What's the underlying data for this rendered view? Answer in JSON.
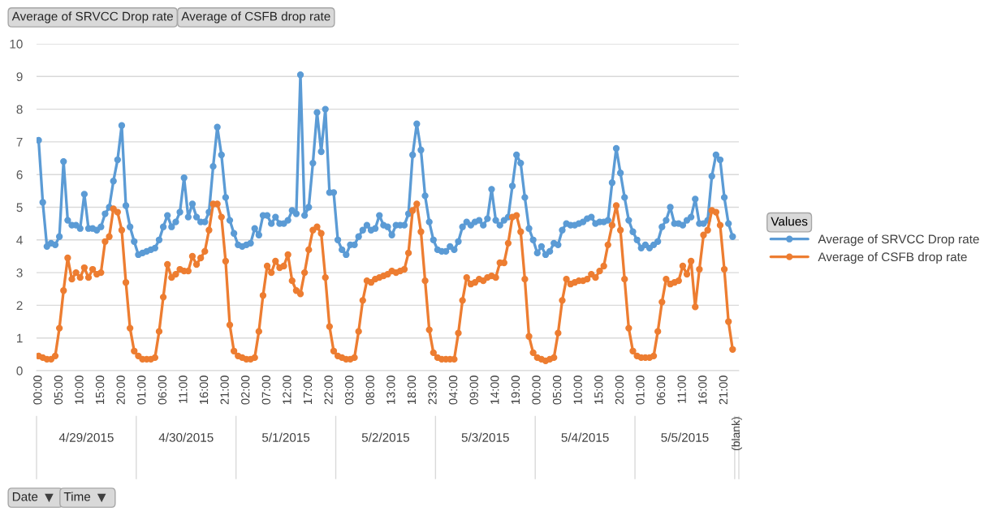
{
  "chart_data": {
    "type": "line",
    "categories": [
      "00:00",
      null,
      null,
      null,
      null,
      "05:00",
      null,
      null,
      null,
      null,
      "10:00",
      null,
      null,
      null,
      null,
      "15:00",
      null,
      null,
      null,
      null,
      "20:00",
      null,
      null,
      null,
      null,
      "01:00",
      null,
      null,
      null,
      null,
      "06:00",
      null,
      null,
      null,
      null,
      "11:00",
      null,
      null,
      null,
      null,
      "16:00",
      null,
      null,
      null,
      null,
      "21:00",
      null,
      null,
      null,
      null,
      "02:00",
      null,
      null,
      null,
      null,
      "07:00",
      null,
      null,
      null,
      null,
      "12:00",
      null,
      null,
      null,
      null,
      "17:00",
      null,
      null,
      null,
      null,
      "22:00",
      null,
      null,
      null,
      null,
      "03:00",
      null,
      null,
      null,
      null,
      "08:00",
      null,
      null,
      null,
      null,
      "13:00",
      null,
      null,
      null,
      null,
      "18:00",
      null,
      null,
      null,
      null,
      "23:00",
      null,
      null,
      null,
      null,
      "04:00",
      null,
      null,
      null,
      null,
      "09:00",
      null,
      null,
      null,
      null,
      "14:00",
      null,
      null,
      null,
      null,
      "19:00",
      null,
      null,
      null,
      null,
      "00:00",
      null,
      null,
      null,
      null,
      "05:00",
      null,
      null,
      null,
      null,
      "10:00",
      null,
      null,
      null,
      null,
      "15:00",
      null,
      null,
      null,
      null,
      "20:00",
      null,
      null,
      null,
      null,
      "01:00",
      null,
      null,
      null,
      null,
      "06:00",
      null,
      null,
      null,
      null,
      "11:00",
      null,
      null,
      null,
      null,
      "16:00",
      null,
      null,
      null,
      null,
      "21:00",
      null,
      null,
      null
    ],
    "series": [
      {
        "name": "Average of SRVCC Drop rate",
        "color": "#5b9bd5",
        "values": [
          7.05,
          5.15,
          3.8,
          3.9,
          3.85,
          4.1,
          6.4,
          4.6,
          4.45,
          4.45,
          4.35,
          5.4,
          4.35,
          4.35,
          4.3,
          4.4,
          4.8,
          5.0,
          5.8,
          6.45,
          7.5,
          5.05,
          4.4,
          3.95,
          3.55,
          3.6,
          3.65,
          3.7,
          3.75,
          4.0,
          4.4,
          4.75,
          4.4,
          4.55,
          4.85,
          5.9,
          4.7,
          5.1,
          4.7,
          4.55,
          4.55,
          4.85,
          6.25,
          7.45,
          6.6,
          5.3,
          4.6,
          4.2,
          3.85,
          3.8,
          3.85,
          3.9,
          4.35,
          4.15,
          4.75,
          4.75,
          4.5,
          4.7,
          4.5,
          4.5,
          4.6,
          4.9,
          4.8,
          9.05,
          4.75,
          5.0,
          6.35,
          7.9,
          6.7,
          8.0,
          5.45,
          5.45,
          4.0,
          3.7,
          3.55,
          3.85,
          3.85,
          4.1,
          4.3,
          4.45,
          4.3,
          4.35,
          4.75,
          4.45,
          4.4,
          4.15,
          4.45,
          4.45,
          4.45,
          4.8,
          6.6,
          7.55,
          6.75,
          5.35,
          4.55,
          4.0,
          3.7,
          3.65,
          3.65,
          3.8,
          3.7,
          3.95,
          4.4,
          4.55,
          4.45,
          4.55,
          4.6,
          4.45,
          4.65,
          5.55,
          4.6,
          4.45,
          4.6,
          4.7,
          5.65,
          6.6,
          6.35,
          5.3,
          4.35,
          4.0,
          3.6,
          3.8,
          3.55,
          3.65,
          3.9,
          3.85,
          4.3,
          4.5,
          4.45,
          4.45,
          4.5,
          4.55,
          4.65,
          4.7,
          4.5,
          4.55,
          4.55,
          4.6,
          5.75,
          6.8,
          6.05,
          5.3,
          4.6,
          4.25,
          4.0,
          3.75,
          3.85,
          3.75,
          3.85,
          3.95,
          4.4,
          4.6,
          5.0,
          4.5,
          4.5,
          4.45,
          4.6,
          4.7,
          5.25,
          4.5,
          4.5,
          4.6,
          5.95,
          6.6,
          6.45,
          5.3,
          4.5,
          4.1,
          null
        ]
      },
      {
        "name": "Average of CSFB drop rate",
        "color": "#ed7d31",
        "values": [
          0.45,
          0.4,
          0.35,
          0.35,
          0.45,
          1.3,
          2.45,
          3.45,
          2.8,
          3.0,
          2.85,
          3.15,
          2.85,
          3.1,
          2.95,
          3.0,
          3.95,
          4.1,
          4.95,
          4.85,
          4.3,
          2.7,
          1.3,
          0.6,
          0.45,
          0.35,
          0.35,
          0.35,
          0.4,
          1.2,
          2.25,
          3.25,
          2.85,
          2.95,
          3.1,
          3.05,
          3.05,
          3.5,
          3.25,
          3.45,
          3.65,
          4.3,
          5.1,
          5.1,
          4.7,
          3.35,
          1.4,
          0.6,
          0.45,
          0.4,
          0.35,
          0.35,
          0.4,
          1.2,
          2.3,
          3.2,
          3.0,
          3.35,
          3.15,
          3.2,
          3.55,
          2.75,
          2.45,
          2.35,
          3.0,
          3.7,
          4.3,
          4.4,
          4.2,
          2.85,
          1.35,
          0.6,
          0.45,
          0.4,
          0.35,
          0.35,
          0.4,
          1.2,
          2.15,
          2.75,
          2.7,
          2.8,
          2.85,
          2.9,
          2.95,
          3.05,
          3.0,
          3.05,
          3.1,
          3.6,
          4.9,
          5.1,
          4.25,
          2.75,
          1.25,
          0.55,
          0.4,
          0.35,
          0.35,
          0.35,
          0.35,
          1.15,
          2.15,
          2.85,
          2.65,
          2.7,
          2.8,
          2.75,
          2.85,
          2.9,
          2.85,
          3.3,
          3.3,
          3.9,
          4.7,
          4.75,
          4.25,
          2.8,
          1.05,
          0.55,
          0.4,
          0.35,
          0.3,
          0.35,
          0.4,
          1.15,
          2.15,
          2.8,
          2.65,
          2.7,
          2.75,
          2.75,
          2.8,
          2.95,
          2.85,
          3.05,
          3.2,
          3.85,
          4.45,
          5.05,
          4.3,
          2.8,
          1.3,
          0.6,
          0.45,
          0.4,
          0.4,
          0.4,
          0.45,
          1.2,
          2.1,
          2.8,
          2.65,
          2.7,
          2.75,
          3.2,
          2.95,
          3.35,
          1.95,
          3.1,
          4.15,
          4.3,
          4.9,
          4.85,
          4.45,
          3.1,
          1.5,
          0.65,
          null
        ]
      }
    ],
    "ylim": [
      0,
      10
    ],
    "yticks": [
      0,
      1,
      2,
      3,
      4,
      5,
      6,
      7,
      8,
      9,
      10
    ],
    "grid": "y",
    "marker": "circle",
    "line_style": "solid",
    "legend": "right",
    "legend_title": "Values",
    "annotations": [
      "Average of SRVCC Drop rate",
      "Average of CSFB drop rate",
      "4/29/2015",
      "4/30/2015",
      "5/1/2015",
      "5/2/2015",
      "5/3/2015",
      "5/4/2015",
      "5/5/2015",
      "(blank)",
      "Date",
      "Time"
    ]
  }
}
